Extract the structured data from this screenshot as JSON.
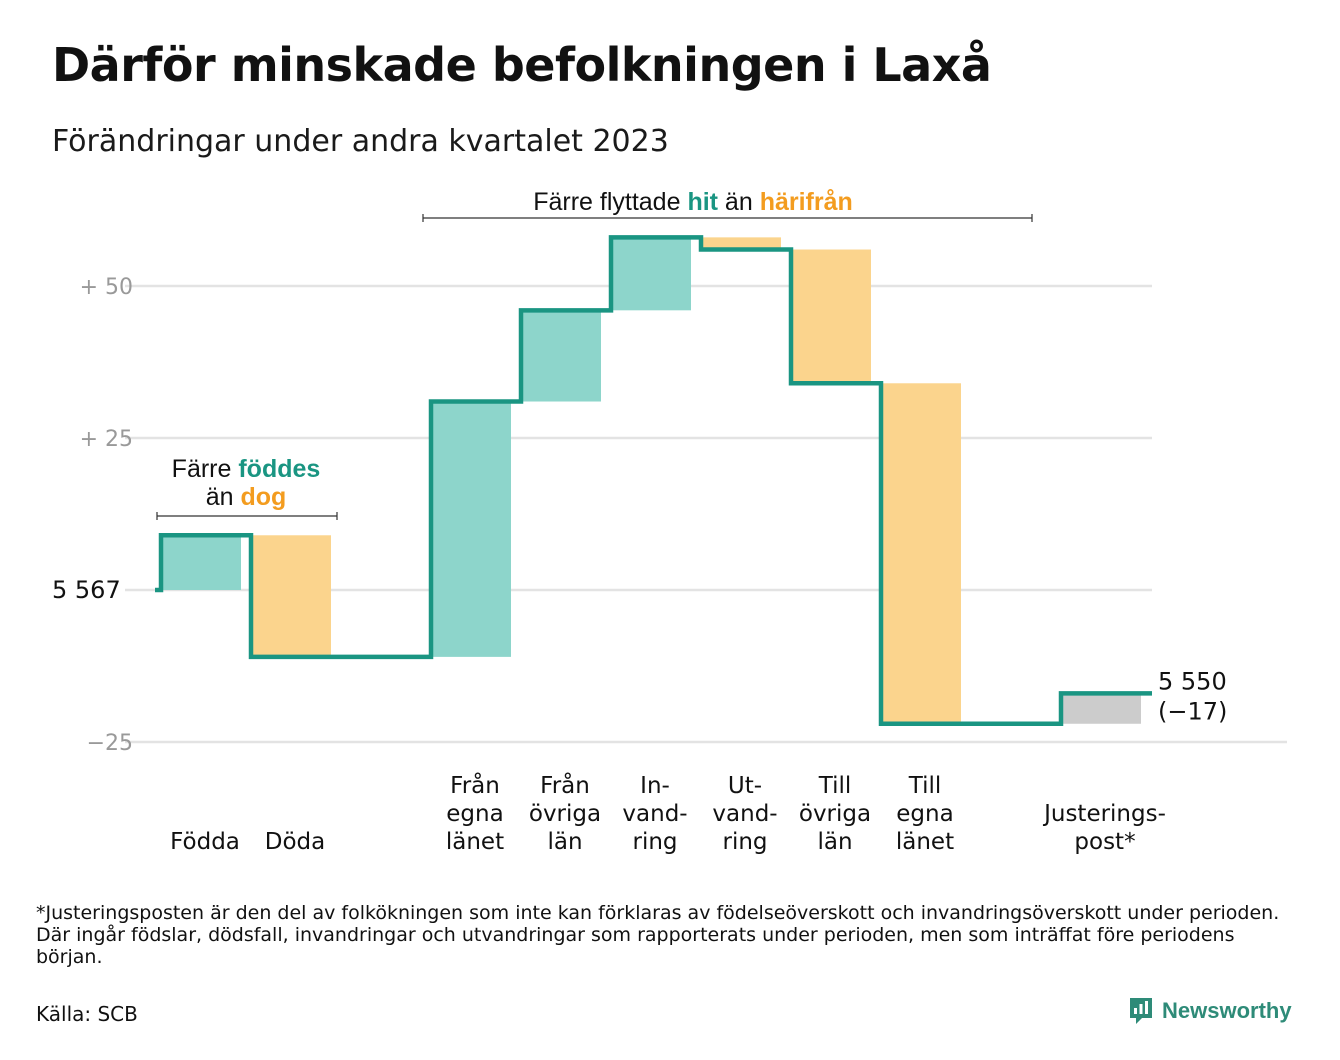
{
  "header": {
    "title": "Därför minskade befolkningen i Laxå",
    "subtitle": "Förändringar under andra kvartalet 2023"
  },
  "footer": {
    "footnote": "*Justeringsposten är den del av folkökningen som inte kan förklaras av födelseöverskott och invandringsöverskott under perioden. Där ingår födslar, dödsfall, invandringar och utvandringar som rapporterats under perioden, men som inträffat före periodens början.",
    "source": "Källa: SCB",
    "brand": "Newsworthy"
  },
  "colors": {
    "increase": "#8dd5cb",
    "decrease": "#fbd48d",
    "adjustment": "#cccccc",
    "line": "#1a9582",
    "accent_teal": "#1a9582",
    "accent_orange": "#f39c1f",
    "grid": "#e3e3e3",
    "tick_text": "#999999"
  },
  "chart_data": {
    "type": "waterfall",
    "title": "Därför minskade befolkningen i Laxå",
    "subtitle": "Förändringar under andra kvartalet 2023",
    "start_value": 5567,
    "start_label": "5  567",
    "end_value": 5550,
    "end_label": [
      "5 550",
      "(−17)"
    ],
    "y_axis": {
      "ticks": [
        {
          "value": 50,
          "label": "+  50"
        },
        {
          "value": 25,
          "label": "+  25"
        },
        {
          "value": 0,
          "label": ""
        },
        {
          "value": -25,
          "label": "−25"
        }
      ],
      "ylim": [
        -25,
        57
      ]
    },
    "steps": [
      {
        "label": [
          "Födda"
        ],
        "change": 9,
        "kind": "increase"
      },
      {
        "label": [
          "Döda"
        ],
        "change": -20,
        "kind": "decrease"
      },
      {
        "label": [],
        "change": 0,
        "kind": "gap"
      },
      {
        "label": [
          "Från",
          "egna",
          "länet"
        ],
        "change": 42,
        "kind": "increase"
      },
      {
        "label": [
          "Från",
          "övriga",
          "län"
        ],
        "change": 15,
        "kind": "increase"
      },
      {
        "label": [
          "In-",
          "vand-",
          "ring"
        ],
        "change": 12,
        "kind": "increase"
      },
      {
        "label": [
          "Ut-",
          "vand-",
          "ring"
        ],
        "change": -2,
        "kind": "decrease"
      },
      {
        "label": [
          "Till",
          "övriga",
          "län"
        ],
        "change": -22,
        "kind": "decrease"
      },
      {
        "label": [
          "Till",
          "egna",
          "länet"
        ],
        "change": -56,
        "kind": "decrease"
      },
      {
        "label": [],
        "change": 0,
        "kind": "gap"
      },
      {
        "label": [
          "Justerings-",
          "post*"
        ],
        "change": 5,
        "kind": "adjustment"
      }
    ],
    "annotations": [
      {
        "id": "births",
        "parts": [
          [
            "Färre ",
            "plain"
          ],
          [
            "föddes",
            "teal"
          ]
        ],
        "parts2": [
          [
            "än ",
            "plain"
          ],
          [
            "dog",
            "orange"
          ]
        ],
        "spans": [
          0,
          1
        ]
      },
      {
        "id": "moves",
        "parts": [
          [
            "Färre flyttade ",
            "plain"
          ],
          [
            "hit",
            "teal"
          ],
          [
            "  än ",
            "plain"
          ],
          [
            "härifrån",
            "orange"
          ]
        ],
        "spans": [
          3,
          8
        ]
      }
    ]
  }
}
